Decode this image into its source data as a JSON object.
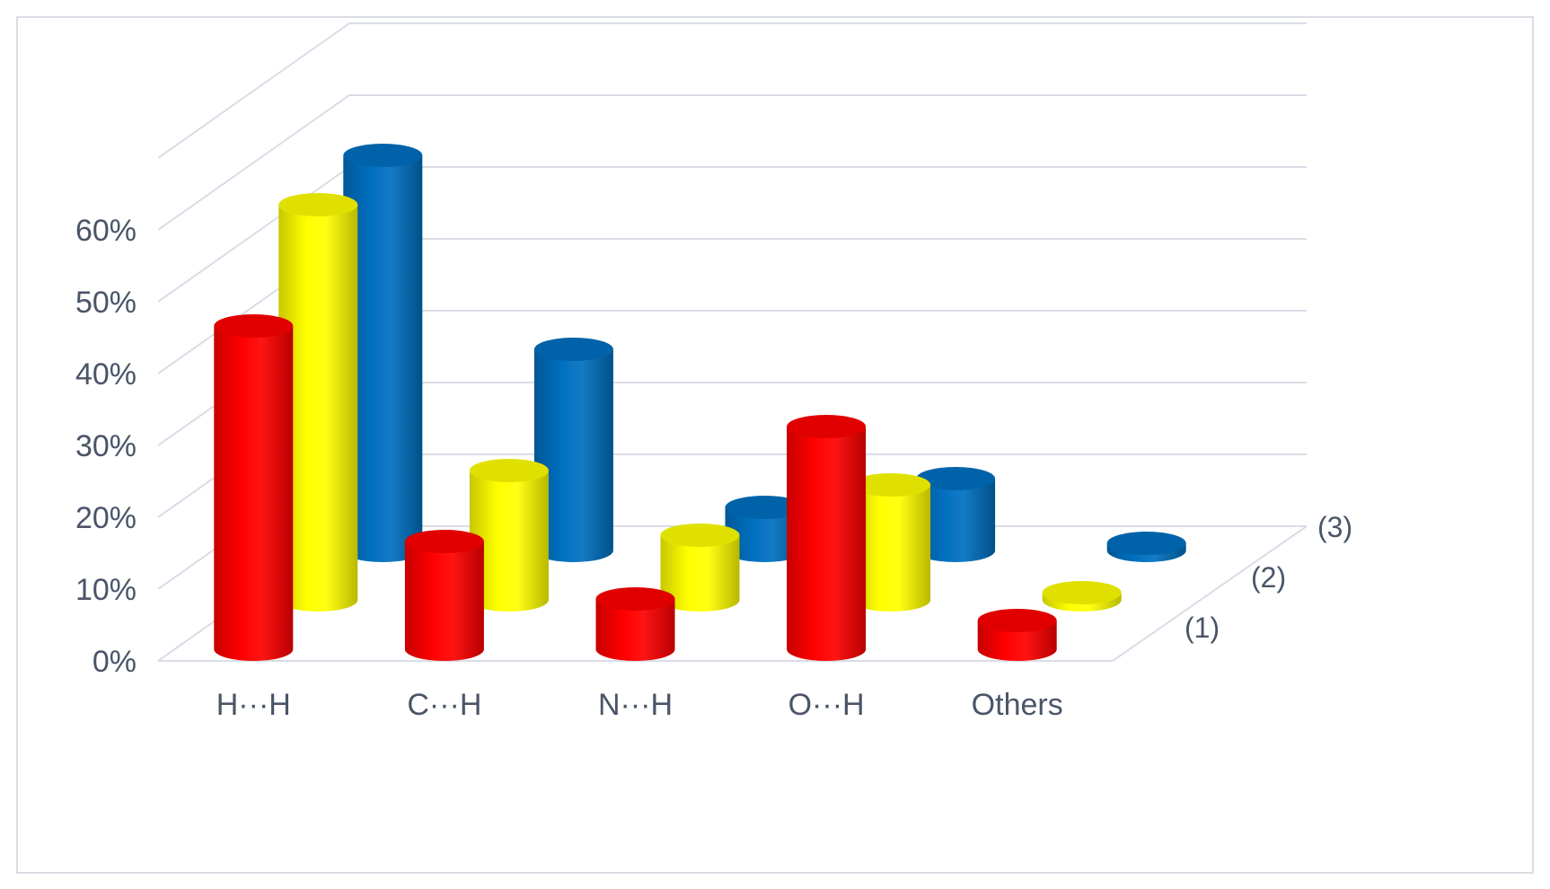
{
  "chart_data": {
    "type": "bar",
    "style": "3d-cylinder",
    "categories": [
      "H···H",
      "C···H",
      "N···H",
      "O···H",
      "Others"
    ],
    "series": [
      {
        "name": "(1)",
        "color": "#ff0000",
        "values": [
          45,
          15,
          7,
          31,
          4
        ]
      },
      {
        "name": "(2)",
        "color": "#ffff00",
        "values": [
          55,
          18,
          9,
          16,
          1
        ]
      },
      {
        "name": "(3)",
        "color": "#0070c0",
        "values": [
          55,
          28,
          6,
          10,
          1
        ]
      }
    ],
    "ylim": [
      0,
      60
    ],
    "y_ticks": [
      "0%",
      "10%",
      "20%",
      "30%",
      "40%",
      "50%",
      "60%"
    ],
    "grid": true,
    "legend": "series labels on depth axis (right)"
  }
}
